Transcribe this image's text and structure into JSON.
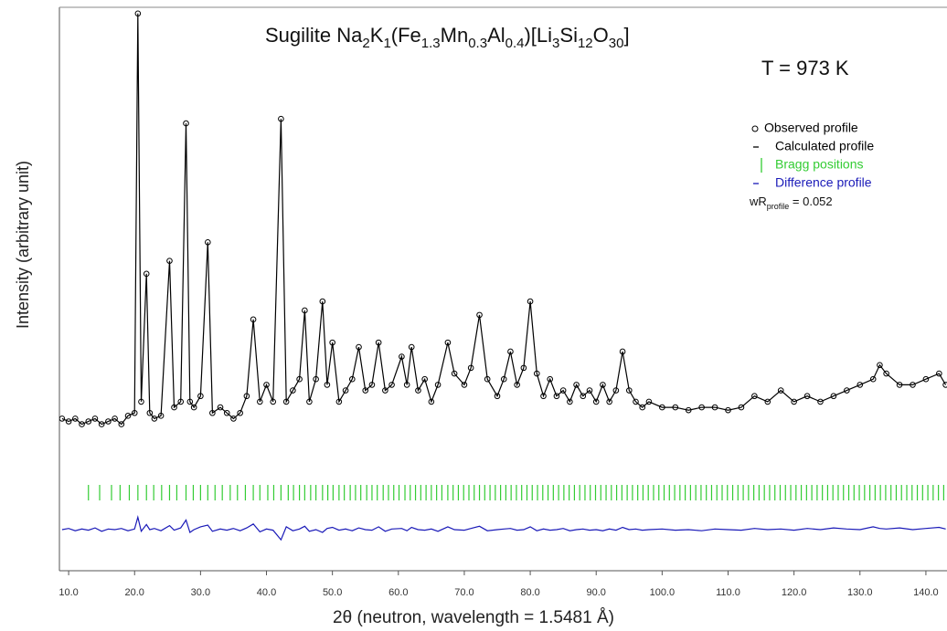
{
  "chart_data": {
    "type": "rietveld",
    "title_parts": [
      {
        "text": "Sugilite "
      },
      {
        "text": "Na"
      },
      {
        "sub": "2"
      },
      {
        "text": "K"
      },
      {
        "sub": "1"
      },
      {
        "text": "(Fe"
      },
      {
        "sub": "1.3"
      },
      {
        "text": "Mn"
      },
      {
        "sub": "0.3"
      },
      {
        "text": "Al"
      },
      {
        "sub": "0.4"
      },
      {
        "text": ")[Li"
      },
      {
        "sub": "3"
      },
      {
        "text": "Si"
      },
      {
        "sub": "12"
      },
      {
        "text": "O"
      },
      {
        "sub": "30"
      },
      {
        "text": "]"
      }
    ],
    "temperature_label": "T = 973 K",
    "x_label": "2θ (neutron, wavelength = 1.5481 Å)",
    "y_label": "Intensity (arbitrary unit)",
    "xlim": [
      8.6,
      143.2
    ],
    "ylim": [
      0,
      100
    ],
    "xticks": [
      {
        "value": 10,
        "label": "10.0"
      },
      {
        "value": 20,
        "label": "20.0"
      },
      {
        "value": 30,
        "label": "30.0"
      },
      {
        "value": 40,
        "label": "40.0"
      },
      {
        "value": 50,
        "label": "50.0"
      },
      {
        "value": 60,
        "label": "60.0"
      },
      {
        "value": 70,
        "label": "70.0"
      },
      {
        "value": 80,
        "label": "80.0"
      },
      {
        "value": 90,
        "label": "90.0"
      },
      {
        "value": 100,
        "label": "100.0"
      },
      {
        "value": 110,
        "label": "110.0"
      },
      {
        "value": 120,
        "label": "120.0"
      },
      {
        "value": 130,
        "label": "130.0"
      },
      {
        "value": 140,
        "label": "140.0"
      }
    ],
    "x": [
      9,
      10,
      11,
      12,
      13,
      14,
      15,
      16,
      17,
      18,
      19,
      20,
      20.5,
      21,
      21.8,
      22.3,
      23,
      24,
      25.3,
      26,
      27,
      27.8,
      28.4,
      29,
      30,
      31.1,
      31.8,
      33,
      34,
      35,
      36,
      37,
      38,
      39,
      40,
      41,
      42.2,
      43,
      44,
      45,
      45.8,
      46.5,
      47.5,
      48.5,
      49.2,
      50,
      51,
      52,
      53,
      54,
      55,
      56,
      57,
      58,
      59,
      60.5,
      61.3,
      62,
      63,
      64,
      65,
      66,
      67.5,
      68.5,
      70,
      71,
      72.3,
      73.5,
      75,
      76,
      77,
      78,
      79,
      80,
      81,
      82,
      83,
      84,
      85,
      86,
      87,
      88,
      89,
      90,
      91,
      92,
      93,
      94,
      95,
      96,
      97,
      98,
      100,
      102,
      104,
      106,
      108,
      110,
      112,
      114,
      116,
      118,
      120,
      122,
      124,
      126,
      128,
      130,
      132,
      133,
      134,
      136,
      138,
      140,
      142,
      143
    ],
    "series": [
      {
        "name": "Observed profile",
        "color": "#000000",
        "style": "marker",
        "values": [
          27,
          26.5,
          27,
          26,
          26.5,
          27,
          26,
          26.5,
          27,
          26,
          27.5,
          28,
          98.9,
          30,
          52.7,
          28,
          27,
          27.5,
          55,
          29,
          30,
          79.4,
          30,
          29,
          31,
          58.3,
          28,
          29,
          28,
          27,
          28,
          31,
          44.6,
          30,
          33,
          30,
          80.2,
          30,
          32,
          34,
          46.2,
          30,
          34,
          47.8,
          33,
          40.5,
          30,
          32,
          34,
          39.7,
          32,
          33,
          40.5,
          32,
          33,
          38,
          33,
          39.7,
          32,
          34,
          30,
          33,
          40.5,
          35,
          33,
          36,
          45.4,
          34,
          31,
          34,
          38.9,
          33,
          36,
          47.8,
          35,
          31,
          34,
          31,
          32,
          30,
          33,
          31,
          32,
          30,
          33,
          30,
          32,
          38.9,
          32,
          30,
          29,
          30,
          29,
          29,
          28.5,
          29,
          29,
          28.5,
          29,
          31,
          30,
          32,
          30,
          31,
          30,
          31,
          32,
          33,
          34,
          36.5,
          35,
          33,
          33,
          34,
          35,
          33
        ]
      },
      {
        "name": "Calculated profile",
        "color": "#000000",
        "style": "line",
        "values": [
          27,
          26.5,
          27,
          26,
          26.5,
          27,
          26,
          26.5,
          27,
          26,
          27.5,
          28,
          98.9,
          30,
          52.7,
          28,
          27,
          27.5,
          55,
          29,
          30,
          79.4,
          30,
          29,
          31,
          58.3,
          28,
          29,
          28,
          27,
          28,
          31,
          44.6,
          30,
          33,
          30,
          80.2,
          30,
          32,
          34,
          46.2,
          30,
          34,
          47.8,
          33,
          40.5,
          30,
          32,
          34,
          39.7,
          32,
          33,
          40.5,
          32,
          33,
          38,
          33,
          39.7,
          32,
          34,
          30,
          33,
          40.5,
          35,
          33,
          36,
          45.4,
          34,
          31,
          34,
          38.9,
          33,
          36,
          47.8,
          35,
          31,
          34,
          31,
          32,
          30,
          33,
          31,
          32,
          30,
          33,
          30,
          32,
          38.9,
          32,
          30,
          29,
          30,
          29,
          29,
          28.5,
          29,
          29,
          28.5,
          29,
          31,
          30,
          32,
          30,
          31,
          30,
          31,
          32,
          33,
          34,
          36.5,
          35,
          33,
          33,
          34,
          35,
          33
        ]
      },
      {
        "name": "Difference profile",
        "color": "#1a1ab8",
        "style": "line",
        "values": [
          7.3,
          7.5,
          7.1,
          7.4,
          7.2,
          7.6,
          7.0,
          7.4,
          7.3,
          7.5,
          7.1,
          7.4,
          9.5,
          7.0,
          8.2,
          7.3,
          7.5,
          7.1,
          8.0,
          7.2,
          7.6,
          9.0,
          6.8,
          7.3,
          7.8,
          8.1,
          7.0,
          7.4,
          7.2,
          7.5,
          7.1,
          7.6,
          8.3,
          6.9,
          7.4,
          7.2,
          5.5,
          7.8,
          7.1,
          7.4,
          7.9,
          7.0,
          7.3,
          6.8,
          7.5,
          7.7,
          7.2,
          7.4,
          7.1,
          7.6,
          7.3,
          7.2,
          7.8,
          7.0,
          7.4,
          7.5,
          7.1,
          7.7,
          7.3,
          7.2,
          7.4,
          7.0,
          7.8,
          7.3,
          7.2,
          7.5,
          7.9,
          7.1,
          7.3,
          7.4,
          7.5,
          7.2,
          7.3,
          7.8,
          7.1,
          7.4,
          7.2,
          7.3,
          7.5,
          7.1,
          7.3,
          7.4,
          7.2,
          7.3,
          7.1,
          7.4,
          7.2,
          7.7,
          7.3,
          7.4,
          7.2,
          7.3,
          7.4,
          7.2,
          7.3,
          7.1,
          7.4,
          7.3,
          7.2,
          7.5,
          7.3,
          7.4,
          7.2,
          7.5,
          7.3,
          7.6,
          7.4,
          7.3,
          7.8,
          7.5,
          7.4,
          7.6,
          7.3,
          7.5,
          7.7,
          7.4
        ]
      }
    ],
    "bragg": {
      "name": "Bragg positions",
      "color": "#33cc33",
      "positions": [
        13,
        14.7,
        16.5,
        17.8,
        19.2,
        20.5,
        21.8,
        22.9,
        24.1,
        25.3,
        26.4,
        27.8,
        28.9,
        30,
        31.1,
        32.2,
        33.3,
        34.5,
        35.6,
        36.8,
        38,
        39,
        40.2,
        41.1,
        42.2,
        43.3,
        44.1,
        45,
        45.8,
        46.7,
        47.5,
        48.5,
        49.3,
        50.1,
        51,
        51.8,
        52.7,
        53.5,
        54.3,
        55.2,
        56,
        56.8,
        57.7,
        58.5,
        59.3,
        60.1,
        61,
        61.8,
        62.6,
        63.4,
        64.2,
        65,
        65.8,
        66.6,
        67.5,
        68.3,
        69.1,
        69.9,
        70.7,
        71.5,
        72.3,
        73.1,
        73.9,
        74.7,
        75.5,
        76.3,
        77.1,
        77.9,
        78.7,
        79.5,
        80.3,
        81.1,
        81.9,
        82.7,
        83.5,
        84.3,
        85.1,
        85.9,
        86.7,
        87.5,
        88.3,
        89.1,
        89.9,
        90.7,
        91.5,
        92.3,
        93.1,
        93.9,
        94.7,
        95.5,
        96.3,
        97.1,
        97.9,
        98.7,
        99.5,
        100.3,
        101.1,
        101.9,
        102.7,
        103.5,
        104.3,
        105.1,
        105.9,
        106.7,
        107.5,
        108.3,
        109.1,
        109.9,
        110.7,
        111.5,
        112.3,
        113.1,
        113.9,
        114.7,
        115.5,
        116.3,
        117.1,
        117.9,
        118.7,
        119.5,
        120.3,
        121.1,
        121.9,
        122.7,
        123.5,
        124.3,
        125.1,
        125.9,
        126.7,
        127.5,
        128.3,
        129.1,
        129.9,
        130.7,
        131.5,
        132.3,
        133.1,
        133.9,
        134.7,
        135.5,
        136.3,
        137.1,
        137.9,
        138.7,
        139.5,
        140.3,
        141.1,
        141.9,
        142.7
      ]
    },
    "fit_parts": [
      {
        "text": "wR"
      },
      {
        "sub": "profile"
      },
      {
        "text": " = 0.052"
      }
    ]
  }
}
